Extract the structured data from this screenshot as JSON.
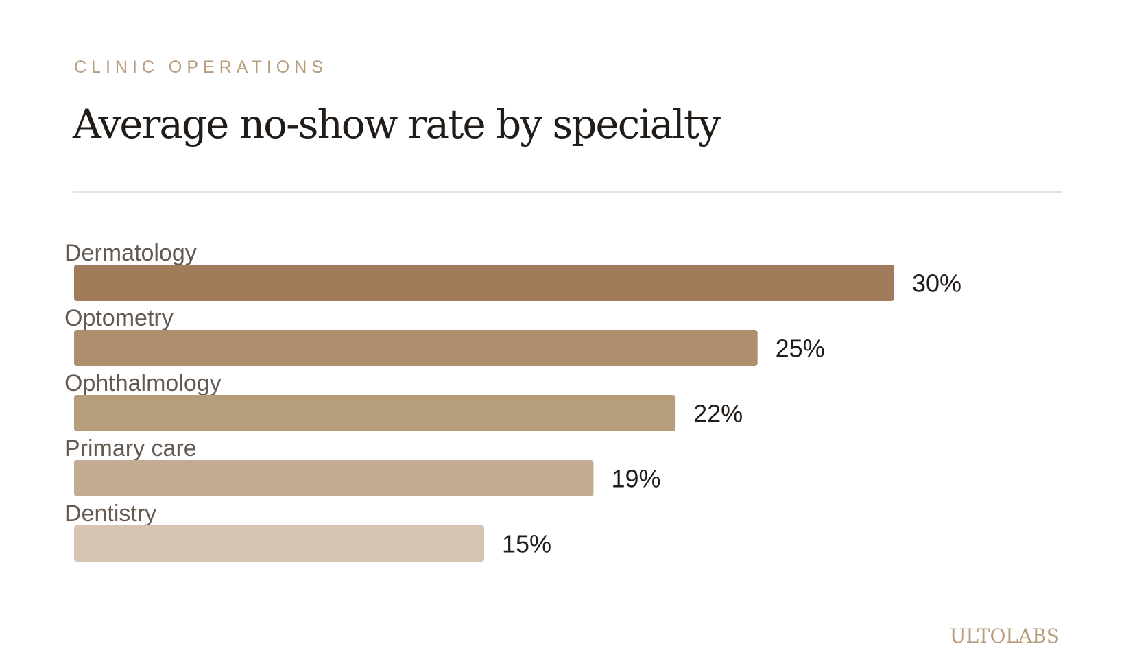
{
  "header": {
    "eyebrow": "CLINIC OPERATIONS"
  },
  "brand": "ULTOLABS",
  "chart_data": {
    "type": "bar",
    "orientation": "horizontal",
    "title": "Average no-show rate by specialty",
    "xlabel": "",
    "ylabel": "",
    "categories": [
      "Dermatology",
      "Optometry",
      "Ophthalmology",
      "Primary care",
      "Dentistry"
    ],
    "values": [
      30,
      25,
      22,
      19,
      15
    ],
    "value_labels": [
      "30%",
      "25%",
      "22%",
      "19%",
      "15%"
    ],
    "colors": [
      "#a07c5b",
      "#af8e6e",
      "#b69d7c",
      "#c4ab94",
      "#d6c5b2"
    ],
    "xlim": [
      0,
      30
    ],
    "grid": false,
    "legend": "none"
  }
}
